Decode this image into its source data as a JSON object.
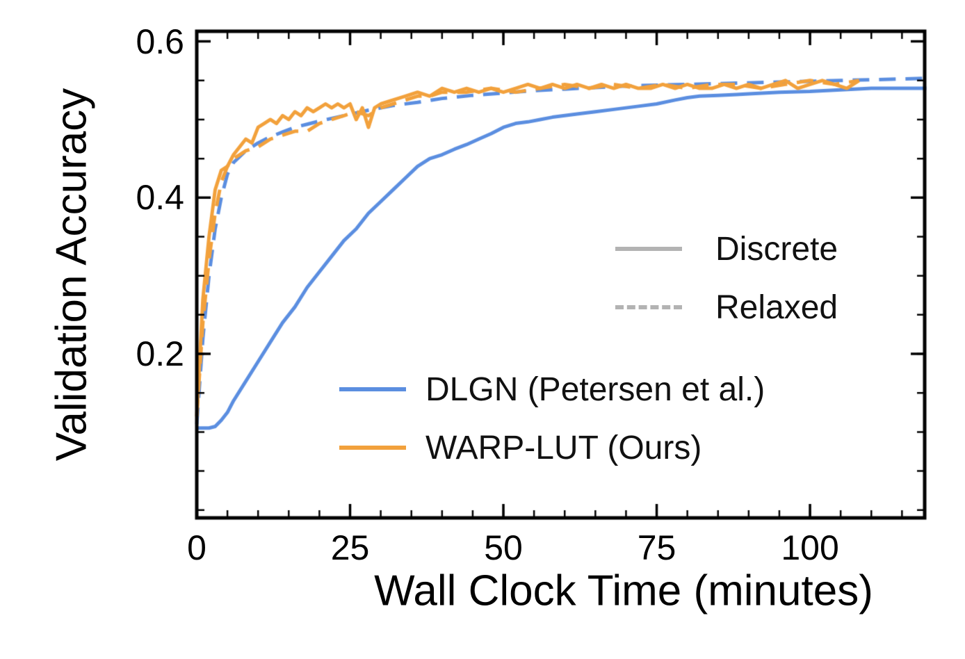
{
  "figure": {
    "background": "#ffffff"
  },
  "chart_data": {
    "type": "line",
    "title": "",
    "xlabel": "Wall Clock Time (minutes)",
    "ylabel": "Validation Accuracy",
    "xlim": [
      0,
      118.7
    ],
    "ylim": [
      -0.01,
      0.613
    ],
    "grid": false,
    "xticks": {
      "major": [
        0,
        25,
        50,
        75,
        100
      ],
      "labels": [
        "0",
        "25",
        "50",
        "75",
        "100"
      ],
      "minor_step": 5
    },
    "yticks": {
      "major": [
        0.2,
        0.4,
        0.6
      ],
      "labels": [
        "0.2",
        "0.4",
        "0.6"
      ],
      "minor_step": 0.05
    },
    "series": [
      {
        "name": "DLGN Discrete",
        "color": "#5b8ee0",
        "style": "solid",
        "x": [
          0,
          2,
          3,
          4,
          5,
          6,
          8,
          10,
          12,
          14,
          16,
          18,
          20,
          22,
          24,
          26,
          28,
          30,
          32,
          34,
          36,
          38,
          40,
          42,
          44,
          46,
          48,
          50,
          52,
          54,
          56,
          58,
          60,
          62,
          65,
          68,
          70,
          72,
          75,
          78,
          80,
          82,
          85,
          88,
          90,
          95,
          100,
          105,
          110,
          115,
          120
        ],
        "y": [
          0.105,
          0.105,
          0.107,
          0.115,
          0.125,
          0.14,
          0.165,
          0.19,
          0.215,
          0.24,
          0.26,
          0.285,
          0.305,
          0.325,
          0.345,
          0.36,
          0.38,
          0.395,
          0.41,
          0.425,
          0.44,
          0.45,
          0.455,
          0.462,
          0.468,
          0.475,
          0.482,
          0.49,
          0.495,
          0.497,
          0.5,
          0.503,
          0.505,
          0.507,
          0.51,
          0.513,
          0.515,
          0.517,
          0.52,
          0.525,
          0.528,
          0.53,
          0.531,
          0.532,
          0.533,
          0.535,
          0.536,
          0.538,
          0.54,
          0.54,
          0.54
        ]
      },
      {
        "name": "DLGN Relaxed",
        "color": "#5b8ee0",
        "style": "dashed",
        "x": [
          0,
          1,
          2,
          3,
          4,
          5,
          6,
          8,
          10,
          12,
          14,
          16,
          18,
          20,
          24,
          28,
          32,
          36,
          40,
          45,
          50,
          55,
          60,
          65,
          70,
          75,
          80,
          85,
          90,
          95,
          100,
          105,
          110,
          115,
          120
        ],
        "y": [
          0.11,
          0.22,
          0.3,
          0.36,
          0.4,
          0.43,
          0.445,
          0.46,
          0.47,
          0.478,
          0.484,
          0.49,
          0.494,
          0.498,
          0.505,
          0.512,
          0.518,
          0.522,
          0.527,
          0.531,
          0.534,
          0.537,
          0.539,
          0.541,
          0.543,
          0.544,
          0.545,
          0.546,
          0.547,
          0.548,
          0.549,
          0.55,
          0.551,
          0.552,
          0.553
        ]
      },
      {
        "name": "WARP-LUT Discrete",
        "color": "#f2a13c",
        "style": "solid",
        "x": [
          0,
          1,
          2,
          3,
          4,
          5,
          6,
          7,
          8,
          9,
          10,
          11,
          12,
          13,
          14,
          15,
          16,
          17,
          18,
          19,
          20,
          21,
          22,
          23,
          24,
          25,
          26,
          27,
          28,
          29,
          30,
          32,
          34,
          36,
          38,
          40,
          42,
          44,
          46,
          48,
          50,
          52,
          54,
          56,
          58,
          60,
          62,
          64,
          66,
          68,
          70,
          72,
          74,
          76,
          78,
          80,
          82,
          84,
          86,
          88,
          90,
          92,
          94,
          96,
          98,
          100,
          102,
          104,
          106,
          108
        ],
        "y": [
          0.12,
          0.27,
          0.35,
          0.41,
          0.435,
          0.44,
          0.455,
          0.465,
          0.475,
          0.47,
          0.49,
          0.495,
          0.5,
          0.495,
          0.505,
          0.5,
          0.51,
          0.505,
          0.515,
          0.51,
          0.515,
          0.52,
          0.515,
          0.52,
          0.515,
          0.52,
          0.5,
          0.515,
          0.49,
          0.515,
          0.52,
          0.525,
          0.53,
          0.535,
          0.53,
          0.54,
          0.535,
          0.54,
          0.535,
          0.54,
          0.535,
          0.54,
          0.545,
          0.54,
          0.545,
          0.54,
          0.545,
          0.54,
          0.545,
          0.54,
          0.545,
          0.54,
          0.54,
          0.545,
          0.54,
          0.545,
          0.54,
          0.54,
          0.545,
          0.54,
          0.545,
          0.54,
          0.545,
          0.55,
          0.54,
          0.545,
          0.55,
          0.545,
          0.54,
          0.55
        ]
      },
      {
        "name": "WARP-LUT Relaxed",
        "color": "#f2a13c",
        "style": "dashed",
        "x": [
          0,
          1,
          2,
          3,
          4,
          5,
          6,
          7,
          8,
          10,
          12,
          14,
          16,
          18,
          20,
          22,
          24,
          26,
          28,
          30,
          32,
          34,
          36,
          38,
          40,
          44,
          48,
          52,
          56,
          60,
          64,
          68,
          72,
          76,
          80,
          84,
          88,
          92,
          96,
          100,
          104,
          108
        ],
        "y": [
          0.12,
          0.24,
          0.32,
          0.38,
          0.42,
          0.44,
          0.45,
          0.455,
          0.46,
          0.465,
          0.475,
          0.48,
          0.485,
          0.485,
          0.495,
          0.5,
          0.505,
          0.51,
          0.505,
          0.515,
          0.52,
          0.525,
          0.53,
          0.53,
          0.535,
          0.535,
          0.54,
          0.535,
          0.54,
          0.545,
          0.54,
          0.545,
          0.54,
          0.545,
          0.54,
          0.545,
          0.545,
          0.54,
          0.545,
          0.55,
          0.545,
          0.55
        ]
      }
    ],
    "legend_style": {
      "position": "upper right",
      "entries": [
        {
          "label": "Discrete",
          "style": "solid",
          "color": "#b3b3b3"
        },
        {
          "label": "Relaxed",
          "style": "dashed",
          "color": "#b3b3b3"
        }
      ]
    },
    "legend_series": {
      "position": "lower center",
      "entries": [
        {
          "label": "DLGN (Petersen et al.)",
          "style": "solid",
          "color": "#5b8ee0"
        },
        {
          "label": "WARP-LUT (Ours)",
          "style": "solid",
          "color": "#f2a13c"
        }
      ]
    }
  }
}
